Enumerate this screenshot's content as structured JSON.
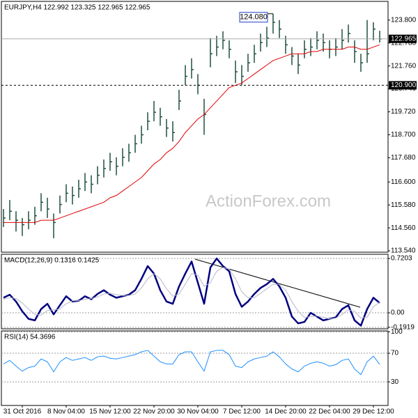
{
  "chart_data": [
    {
      "type": "ohlc",
      "title": "EURJPY,H4  122.992 123.325 122.965 122.965",
      "color": "#1f4f3f",
      "grid": false,
      "watermark": "ActionForex.com",
      "categories": [
        null,
        null,
        null,
        "31 Oct 2016",
        null,
        null,
        null,
        null,
        null,
        null,
        "8 Nov 04:00",
        null,
        null,
        null,
        null,
        null,
        null,
        "15 Nov 12:00",
        null,
        null,
        null,
        null,
        null,
        null,
        "22 Nov 20:00",
        null,
        null,
        null,
        null,
        null,
        null,
        "30 Nov 04:00",
        null,
        null,
        null,
        null,
        null,
        null,
        "7 Dec 12:00",
        null,
        null,
        null,
        null,
        null,
        null,
        "14 Dec 20:00",
        null,
        null,
        null,
        null,
        null,
        null,
        "22 Dec 04:00",
        null,
        null,
        null,
        null,
        null,
        null,
        "29 Dec 12:00",
        null
      ],
      "high": [
        115.4,
        115.8,
        115.3,
        115.0,
        115.3,
        115.5,
        116.1,
        115.9,
        115.2,
        116.0,
        116.5,
        116.4,
        116.7,
        117.0,
        116.9,
        117.3,
        117.6,
        117.9,
        117.7,
        118.1,
        118.3,
        118.7,
        119.1,
        119.7,
        120.2,
        119.9,
        119.4,
        119.3,
        120.7,
        121.8,
        122.1,
        121.4,
        120.3,
        123.0,
        123.1,
        123.3,
        122.9,
        122.0,
        121.8,
        122.3,
        122.7,
        123.2,
        123.5,
        124.08,
        123.8,
        123.1,
        122.6,
        122.3,
        122.9,
        123.0,
        123.3,
        123.2,
        122.9,
        123.0,
        123.4,
        123.6,
        122.9,
        122.3,
        123.8,
        123.7,
        123.325
      ],
      "low": [
        114.6,
        114.9,
        114.4,
        114.2,
        114.5,
        114.7,
        115.3,
        115.0,
        114.1,
        115.2,
        115.7,
        115.6,
        115.9,
        116.2,
        116.1,
        116.5,
        116.8,
        117.1,
        116.9,
        117.3,
        117.5,
        117.9,
        118.3,
        118.9,
        119.3,
        119.1,
        118.6,
        118.4,
        119.8,
        120.9,
        121.2,
        120.5,
        118.7,
        121.7,
        122.2,
        122.5,
        122.1,
        121.0,
        120.9,
        121.5,
        121.9,
        122.4,
        122.6,
        123.2,
        123.0,
        122.3,
        121.8,
        121.4,
        122.1,
        122.2,
        122.5,
        122.4,
        122.1,
        122.2,
        122.5,
        122.8,
        121.9,
        121.5,
        121.9,
        122.9,
        122.8
      ],
      "close": [
        115.0,
        115.3,
        114.9,
        114.7,
        114.9,
        115.1,
        115.7,
        115.4,
        114.8,
        115.6,
        116.1,
        116.0,
        116.3,
        116.6,
        116.5,
        116.9,
        117.2,
        117.5,
        117.3,
        117.7,
        117.9,
        118.3,
        118.7,
        119.3,
        119.7,
        119.5,
        119.0,
        118.8,
        120.2,
        121.3,
        121.6,
        120.9,
        119.6,
        122.3,
        122.6,
        122.9,
        122.5,
        121.5,
        121.3,
        121.9,
        122.3,
        122.8,
        123.0,
        123.7,
        123.4,
        122.7,
        122.2,
        121.8,
        122.5,
        122.6,
        122.9,
        122.8,
        122.5,
        122.6,
        122.9,
        123.2,
        122.4,
        121.9,
        122.3,
        123.4,
        122.965
      ],
      "overlay": {
        "color": "#e00000",
        "values": [
          114.8,
          114.8,
          114.8,
          114.8,
          114.8,
          114.8,
          114.9,
          114.9,
          114.9,
          115.0,
          115.1,
          115.2,
          115.3,
          115.4,
          115.5,
          115.6,
          115.7,
          115.9,
          116.0,
          116.2,
          116.4,
          116.6,
          116.8,
          117.1,
          117.4,
          117.6,
          117.9,
          118.1,
          118.4,
          118.8,
          119.1,
          119.4,
          119.6,
          119.9,
          120.2,
          120.5,
          120.8,
          120.9,
          121.0,
          121.2,
          121.4,
          121.6,
          121.8,
          122.0,
          122.1,
          122.2,
          122.3,
          122.3,
          122.3,
          122.4,
          122.4,
          122.5,
          122.5,
          122.5,
          122.5,
          122.6,
          122.6,
          122.5,
          122.5,
          122.6,
          122.7
        ]
      },
      "ylim": [
        113.48,
        124.63
      ],
      "yticks": [
        {
          "value": 123.8,
          "label": "123.800"
        },
        {
          "value": 122.78,
          "label": "122.780"
        },
        {
          "value": 121.76,
          "label": "121.760"
        },
        {
          "value": 120.74,
          "label": "120.740"
        },
        {
          "value": 119.72,
          "label": "119.720"
        },
        {
          "value": 118.7,
          "label": "118.700"
        },
        {
          "value": 117.68,
          "label": "117.680"
        },
        {
          "value": 116.6,
          "label": "116.600"
        },
        {
          "value": 115.58,
          "label": "115.580"
        },
        {
          "value": 114.56,
          "label": "114.560"
        },
        {
          "value": 113.54,
          "label": "113.540"
        }
      ],
      "current": {
        "value": 122.965,
        "label": "122.965"
      },
      "hline": {
        "value": 120.9,
        "label": "120.900"
      },
      "high_label": {
        "value": 124.08,
        "label": "124.080"
      }
    },
    {
      "type": "line",
      "title": "MACD(12,26,9) 0.1316 0.1425",
      "grid": true,
      "ylim": [
        -0.212,
        0.776
      ],
      "yticks": [
        0.7203,
        {
          "value": 0,
          "label": "0.00"
        },
        -0.1919
      ],
      "series": [
        {
          "color": "#000080",
          "width": 2.5,
          "values": [
            0.2,
            0.24,
            0.15,
            0.02,
            -0.08,
            -0.1,
            0.05,
            0.12,
            -0.02,
            0.1,
            0.22,
            0.15,
            0.16,
            0.22,
            0.18,
            0.25,
            0.3,
            0.24,
            0.2,
            0.22,
            0.24,
            0.3,
            0.45,
            0.62,
            0.52,
            0.3,
            0.15,
            0.12,
            0.35,
            0.52,
            0.68,
            0.4,
            0.12,
            0.6,
            0.72,
            0.62,
            0.55,
            0.25,
            0.08,
            0.15,
            0.25,
            0.33,
            0.38,
            0.45,
            0.35,
            0.2,
            -0.05,
            -0.14,
            -0.12,
            0.0,
            -0.05,
            -0.1,
            -0.08,
            -0.06,
            0.05,
            0.1,
            -0.1,
            -0.17,
            0.05,
            0.2,
            0.1316
          ]
        },
        {
          "color": "#b8b8c8",
          "width": 1,
          "values": [
            0.18,
            0.2,
            0.19,
            0.13,
            0.05,
            -0.02,
            -0.03,
            0.03,
            0.04,
            0.05,
            0.12,
            0.16,
            0.16,
            0.18,
            0.19,
            0.21,
            0.25,
            0.26,
            0.24,
            0.23,
            0.23,
            0.25,
            0.33,
            0.45,
            0.52,
            0.45,
            0.32,
            0.22,
            0.25,
            0.38,
            0.52,
            0.5,
            0.35,
            0.4,
            0.55,
            0.6,
            0.58,
            0.45,
            0.28,
            0.2,
            0.2,
            0.26,
            0.32,
            0.38,
            0.38,
            0.3,
            0.15,
            0.02,
            -0.06,
            -0.05,
            -0.04,
            -0.06,
            -0.08,
            -0.07,
            -0.02,
            0.04,
            0.02,
            -0.07,
            -0.06,
            0.08,
            0.1425
          ]
        }
      ]
    },
    {
      "type": "line",
      "title": "RSI(14) 54.3696",
      "grid": true,
      "ylim": [
        -3,
        101.2
      ],
      "yticks": [
        100,
        70,
        30
      ],
      "series": [
        {
          "color": "#1e90ff",
          "width": 1,
          "values": [
            55,
            60,
            52,
            45,
            50,
            52,
            62,
            58,
            44,
            58,
            64,
            60,
            62,
            64,
            60,
            65,
            66,
            63,
            62,
            64,
            66,
            68,
            72,
            74,
            66,
            58,
            55,
            55,
            68,
            72,
            72,
            58,
            45,
            72,
            74,
            74,
            68,
            52,
            50,
            58,
            62,
            64,
            66,
            72,
            65,
            55,
            48,
            44,
            52,
            56,
            58,
            56,
            52,
            54,
            60,
            62,
            48,
            40,
            58,
            66,
            54.3696
          ]
        }
      ]
    }
  ]
}
